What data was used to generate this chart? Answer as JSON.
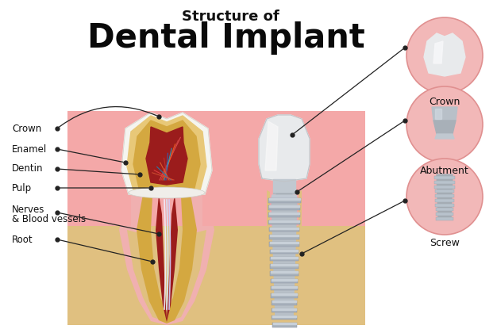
{
  "title_line1": "Structure of",
  "title_line2": "Dental Implant",
  "bg_color": "#ffffff",
  "gum_pink": "#f4a8a8",
  "gum_light": "#f9c8c8",
  "bone_color": "#e0c080",
  "dentin_crown_color": "#e8c878",
  "dentin_inner_color": "#d4a840",
  "pulp_color": "#9b1c1c",
  "enamel_color": "#f5f5f0",
  "root_outer_color": "#f0b0b0",
  "root_inner_color": "#d4956a",
  "implant_silver": "#b8c0c8",
  "implant_dark": "#888f98",
  "implant_light": "#d0d8e0",
  "circle_bg": "#f2b8b8",
  "circle_edge": "#e09090",
  "label_color": "#111111",
  "line_color": "#222222",
  "labels_right": [
    "Crown",
    "Abutment",
    "Screw"
  ]
}
